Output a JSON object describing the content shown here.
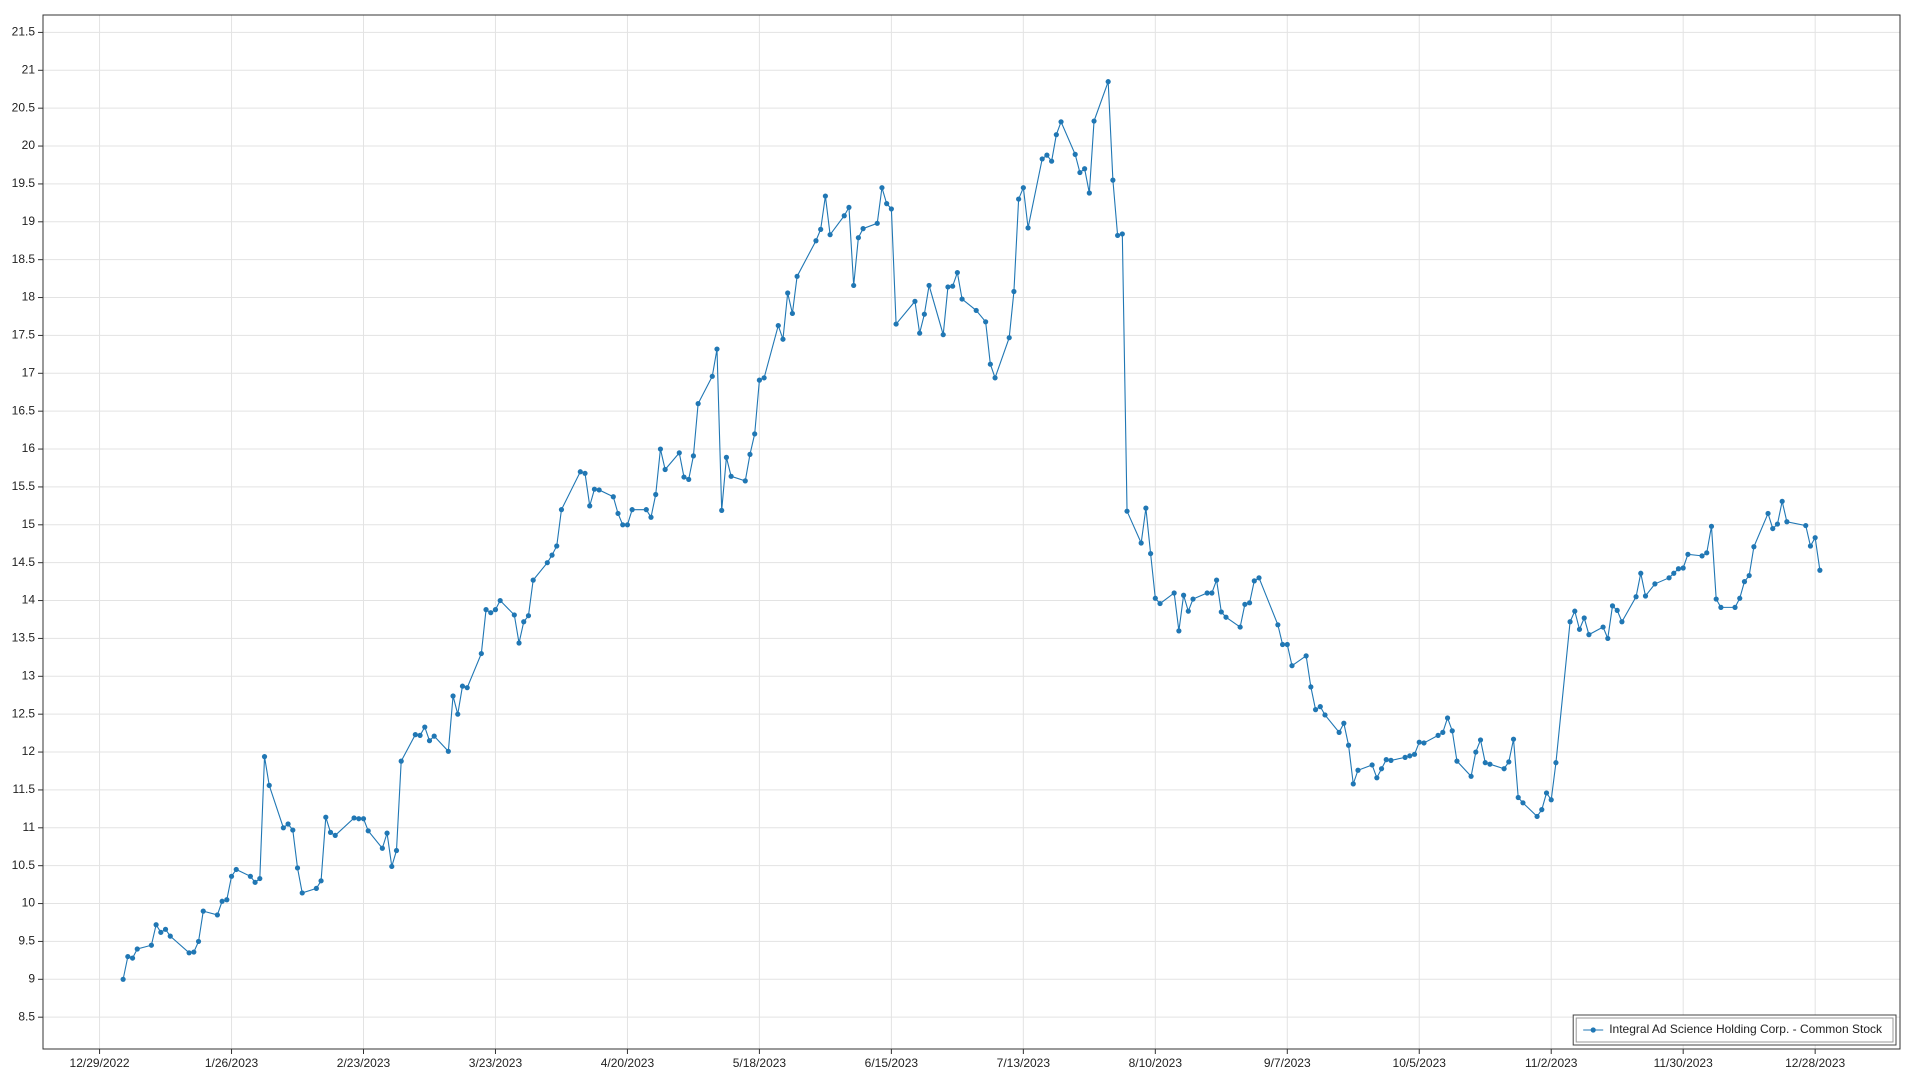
{
  "chart_data": {
    "type": "line",
    "x": [
      "2023-01-03",
      "2023-01-04",
      "2023-01-05",
      "2023-01-06",
      "2023-01-09",
      "2023-01-10",
      "2023-01-11",
      "2023-01-12",
      "2023-01-13",
      "2023-01-17",
      "2023-01-18",
      "2023-01-19",
      "2023-01-20",
      "2023-01-23",
      "2023-01-24",
      "2023-01-25",
      "2023-01-26",
      "2023-01-27",
      "2023-01-30",
      "2023-01-31",
      "2023-02-01",
      "2023-02-02",
      "2023-02-03",
      "2023-02-06",
      "2023-02-07",
      "2023-02-08",
      "2023-02-09",
      "2023-02-10",
      "2023-02-13",
      "2023-02-14",
      "2023-02-15",
      "2023-02-16",
      "2023-02-17",
      "2023-02-21",
      "2023-02-22",
      "2023-02-23",
      "2023-02-24",
      "2023-02-27",
      "2023-02-28",
      "2023-03-01",
      "2023-03-02",
      "2023-03-03",
      "2023-03-06",
      "2023-03-07",
      "2023-03-08",
      "2023-03-09",
      "2023-03-10",
      "2023-03-13",
      "2023-03-14",
      "2023-03-15",
      "2023-03-16",
      "2023-03-17",
      "2023-03-20",
      "2023-03-21",
      "2023-03-22",
      "2023-03-23",
      "2023-03-24",
      "2023-03-27",
      "2023-03-28",
      "2023-03-29",
      "2023-03-30",
      "2023-03-31",
      "2023-04-03",
      "2023-04-04",
      "2023-04-05",
      "2023-04-06",
      "2023-04-10",
      "2023-04-11",
      "2023-04-12",
      "2023-04-13",
      "2023-04-14",
      "2023-04-17",
      "2023-04-18",
      "2023-04-19",
      "2023-04-20",
      "2023-04-21",
      "2023-04-24",
      "2023-04-25",
      "2023-04-26",
      "2023-04-27",
      "2023-04-28",
      "2023-05-01",
      "2023-05-02",
      "2023-05-03",
      "2023-05-04",
      "2023-05-05",
      "2023-05-08",
      "2023-05-09",
      "2023-05-10",
      "2023-05-11",
      "2023-05-12",
      "2023-05-15",
      "2023-05-16",
      "2023-05-17",
      "2023-05-18",
      "2023-05-19",
      "2023-05-22",
      "2023-05-23",
      "2023-05-24",
      "2023-05-25",
      "2023-05-26",
      "2023-05-30",
      "2023-05-31",
      "2023-06-01",
      "2023-06-02",
      "2023-06-05",
      "2023-06-06",
      "2023-06-07",
      "2023-06-08",
      "2023-06-09",
      "2023-06-12",
      "2023-06-13",
      "2023-06-14",
      "2023-06-15",
      "2023-06-16",
      "2023-06-20",
      "2023-06-21",
      "2023-06-22",
      "2023-06-23",
      "2023-06-26",
      "2023-06-27",
      "2023-06-28",
      "2023-06-29",
      "2023-06-30",
      "2023-07-03",
      "2023-07-05",
      "2023-07-06",
      "2023-07-07",
      "2023-07-10",
      "2023-07-11",
      "2023-07-12",
      "2023-07-13",
      "2023-07-14",
      "2023-07-17",
      "2023-07-18",
      "2023-07-19",
      "2023-07-20",
      "2023-07-21",
      "2023-07-24",
      "2023-07-25",
      "2023-07-26",
      "2023-07-27",
      "2023-07-28",
      "2023-07-31",
      "2023-08-01",
      "2023-08-02",
      "2023-08-03",
      "2023-08-04",
      "2023-08-07",
      "2023-08-08",
      "2023-08-09",
      "2023-08-10",
      "2023-08-11",
      "2023-08-14",
      "2023-08-15",
      "2023-08-16",
      "2023-08-17",
      "2023-08-18",
      "2023-08-21",
      "2023-08-22",
      "2023-08-23",
      "2023-08-24",
      "2023-08-25",
      "2023-08-28",
      "2023-08-29",
      "2023-08-30",
      "2023-08-31",
      "2023-09-01",
      "2023-09-05",
      "2023-09-06",
      "2023-09-07",
      "2023-09-08",
      "2023-09-11",
      "2023-09-12",
      "2023-09-13",
      "2023-09-14",
      "2023-09-15",
      "2023-09-18",
      "2023-09-19",
      "2023-09-20",
      "2023-09-21",
      "2023-09-22",
      "2023-09-25",
      "2023-09-26",
      "2023-09-27",
      "2023-09-28",
      "2023-09-29",
      "2023-10-02",
      "2023-10-03",
      "2023-10-04",
      "2023-10-05",
      "2023-10-06",
      "2023-10-09",
      "2023-10-10",
      "2023-10-11",
      "2023-10-12",
      "2023-10-13",
      "2023-10-16",
      "2023-10-17",
      "2023-10-18",
      "2023-10-19",
      "2023-10-20",
      "2023-10-23",
      "2023-10-24",
      "2023-10-25",
      "2023-10-26",
      "2023-10-27",
      "2023-10-30",
      "2023-10-31",
      "2023-11-01",
      "2023-11-02",
      "2023-11-03",
      "2023-11-06",
      "2023-11-07",
      "2023-11-08",
      "2023-11-09",
      "2023-11-10",
      "2023-11-13",
      "2023-11-14",
      "2023-11-15",
      "2023-11-16",
      "2023-11-17",
      "2023-11-20",
      "2023-11-21",
      "2023-11-22",
      "2023-11-24",
      "2023-11-27",
      "2023-11-28",
      "2023-11-29",
      "2023-11-30",
      "2023-12-01",
      "2023-12-04",
      "2023-12-05",
      "2023-12-06",
      "2023-12-07",
      "2023-12-08",
      "2023-12-11",
      "2023-12-12",
      "2023-12-13",
      "2023-12-14",
      "2023-12-15",
      "2023-12-18",
      "2023-12-19",
      "2023-12-20",
      "2023-12-21",
      "2023-12-22",
      "2023-12-26",
      "2023-12-27",
      "2023-12-28",
      "2023-12-29"
    ],
    "series": [
      {
        "name": "Integral Ad Science Holding Corp. - Common Stock",
        "color": "#2077b4",
        "values": [
          9.0,
          9.3,
          9.28,
          9.4,
          9.45,
          9.72,
          9.62,
          9.66,
          9.57,
          9.35,
          9.36,
          9.5,
          9.9,
          9.85,
          10.03,
          10.05,
          10.36,
          10.45,
          10.36,
          10.28,
          10.33,
          11.94,
          11.56,
          11.0,
          11.05,
          10.97,
          10.47,
          10.14,
          10.2,
          10.3,
          11.14,
          10.94,
          10.9,
          11.13,
          11.12,
          11.12,
          10.96,
          10.73,
          10.93,
          10.49,
          10.7,
          11.88,
          12.23,
          12.22,
          12.33,
          12.15,
          12.21,
          12.01,
          12.74,
          12.5,
          12.87,
          12.85,
          13.3,
          13.88,
          13.84,
          13.88,
          14.0,
          13.81,
          13.44,
          13.72,
          13.8,
          14.27,
          14.5,
          14.6,
          14.72,
          15.2,
          15.7,
          15.68,
          15.25,
          15.47,
          15.46,
          15.37,
          15.15,
          15.0,
          15.0,
          15.2,
          15.2,
          15.1,
          15.4,
          16.0,
          15.73,
          15.95,
          15.63,
          15.6,
          15.91,
          16.6,
          16.96,
          17.32,
          15.19,
          15.89,
          15.64,
          15.58,
          15.93,
          16.2,
          16.91,
          16.94,
          17.63,
          17.45,
          18.06,
          17.79,
          18.28,
          18.75,
          18.9,
          19.34,
          18.83,
          19.08,
          19.19,
          18.16,
          18.79,
          18.91,
          18.98,
          19.45,
          19.24,
          19.17,
          17.65,
          17.95,
          17.53,
          17.78,
          18.16,
          17.51,
          18.14,
          18.15,
          18.33,
          17.98,
          17.83,
          17.68,
          17.12,
          16.94,
          17.47,
          18.08,
          19.3,
          19.45,
          18.92,
          19.83,
          19.88,
          19.8,
          20.15,
          20.32,
          19.89,
          19.65,
          19.7,
          19.38,
          20.33,
          20.85,
          19.55,
          18.82,
          18.84,
          15.18,
          14.76,
          15.22,
          14.62,
          14.03,
          13.96,
          14.1,
          13.6,
          14.07,
          13.86,
          14.02,
          14.1,
          14.1,
          14.27,
          13.85,
          13.78,
          13.65,
          13.95,
          13.97,
          14.26,
          14.3,
          13.68,
          13.42,
          13.42,
          13.14,
          13.27,
          12.86,
          12.56,
          12.6,
          12.49,
          12.26,
          12.38,
          12.09,
          11.58,
          11.76,
          11.83,
          11.66,
          11.78,
          11.9,
          11.89,
          11.93,
          11.95,
          11.97,
          12.13,
          12.12,
          12.22,
          12.26,
          12.45,
          12.28,
          11.88,
          11.68,
          12.0,
          12.16,
          11.86,
          11.84,
          11.78,
          11.87,
          12.17,
          11.4,
          11.33,
          11.15,
          11.24,
          11.46,
          11.37,
          11.86,
          13.72,
          13.86,
          13.62,
          13.77,
          13.55,
          13.65,
          13.5,
          13.93,
          13.87,
          13.72,
          14.05,
          14.36,
          14.06,
          14.22,
          14.3,
          14.36,
          14.42,
          14.43,
          14.61,
          14.59,
          14.63,
          14.98,
          14.02,
          13.91,
          13.91,
          14.03,
          14.25,
          14.33,
          14.71,
          15.15,
          14.95,
          15.01,
          15.31,
          15.04,
          14.99,
          14.72,
          14.83,
          14.4
        ]
      }
    ],
    "xlim": [
      "2022-12-17",
      "2024-01-15"
    ],
    "xticks": [
      {
        "value": "2022-12-29",
        "label": "12/29/2022"
      },
      {
        "value": "2023-01-26",
        "label": "1/26/2023"
      },
      {
        "value": "2023-02-23",
        "label": "2/23/2023"
      },
      {
        "value": "2023-03-23",
        "label": "3/23/2023"
      },
      {
        "value": "2023-04-20",
        "label": "4/20/2023"
      },
      {
        "value": "2023-05-18",
        "label": "5/18/2023"
      },
      {
        "value": "2023-06-15",
        "label": "6/15/2023"
      },
      {
        "value": "2023-07-13",
        "label": "7/13/2023"
      },
      {
        "value": "2023-08-10",
        "label": "8/10/2023"
      },
      {
        "value": "2023-09-07",
        "label": "9/7/2023"
      },
      {
        "value": "2023-10-05",
        "label": "10/5/2023"
      },
      {
        "value": "2023-11-02",
        "label": "11/2/2023"
      },
      {
        "value": "2023-11-30",
        "label": "11/30/2023"
      },
      {
        "value": "2023-12-28",
        "label": "12/28/2023"
      }
    ],
    "ylim": [
      8.08,
      21.73
    ],
    "yticks": [
      8.5,
      9,
      9.5,
      10,
      10.5,
      11,
      11.5,
      12,
      12.5,
      13,
      13.5,
      14,
      14.5,
      15,
      15.5,
      16,
      16.5,
      17,
      17.5,
      18,
      18.5,
      19,
      19.5,
      20,
      20.5,
      21,
      21.5
    ],
    "grid": true,
    "legend": "lower right"
  }
}
